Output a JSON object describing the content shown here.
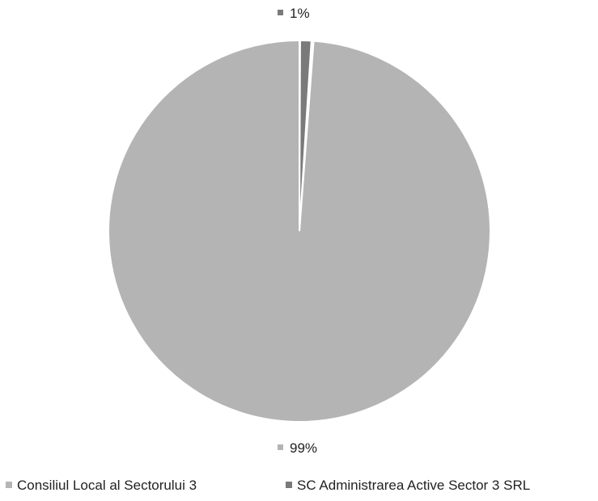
{
  "chart_data": {
    "type": "pie",
    "title": "",
    "series": [
      {
        "name": "",
        "categories": [
          "Consiliul Local al Sectorului 3",
          "SC Administrarea Active Sector 3 SRL"
        ],
        "values": [
          99,
          1
        ],
        "labels": [
          "99%",
          "1%"
        ]
      }
    ],
    "colors": [
      "#b4b4b4",
      "#7a7a7a"
    ],
    "slice_border_color": "#ffffff",
    "legend": {
      "position": "bottom",
      "entries": [
        "Consiliul Local al Sectorului 3",
        "SC Administrarea Active Sector 3 SRL"
      ]
    }
  }
}
